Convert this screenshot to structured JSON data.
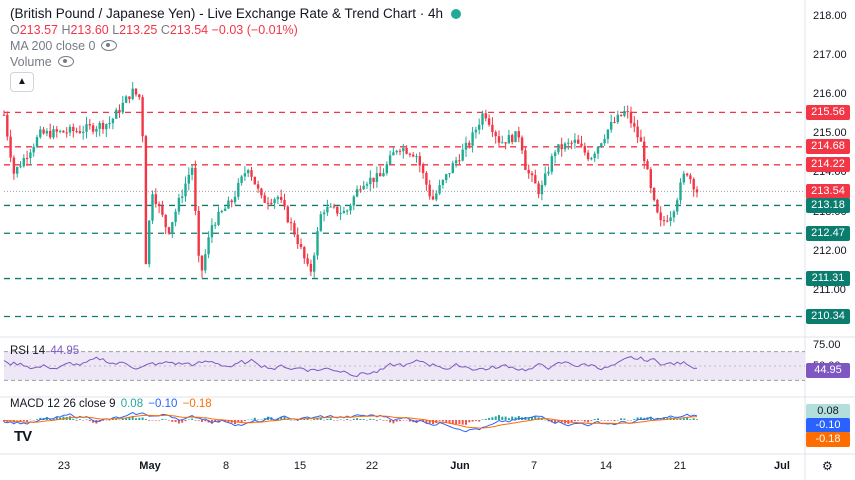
{
  "legend": {
    "title": "(British Pound / Japanese Yen) - Live Exchange Rate & Trend Chart · 4h",
    "ohlc": {
      "o_label": "O",
      "o": "213.57",
      "h_label": "H",
      "h": "213.60",
      "l_label": "L",
      "l": "213.25",
      "c_label": "C",
      "c": "213.54",
      "change": "−0.03 (−0.01%)"
    },
    "ma": "MA 200 close 0",
    "volume": "Volume",
    "collapse_icon": "chevron-up-icon"
  },
  "colors": {
    "up": "#22ab94",
    "down": "#f23645",
    "resistance": "#f23645",
    "support": "#0a7d6e",
    "rsi_line": "#7e57c2",
    "rsi_band": "#ede7f6",
    "macd_line": "#2962ff",
    "signal_line": "#ff6d00"
  },
  "price_axis": [
    "218.00",
    "217.00",
    "216.00",
    "215.00",
    "214.00",
    "213.00",
    "212.00",
    "211.00"
  ],
  "price_tags": [
    {
      "value": "215.56",
      "kind": "resistance"
    },
    {
      "value": "214.68",
      "kind": "resistance"
    },
    {
      "value": "214.22",
      "kind": "resistance"
    },
    {
      "value": "213.54",
      "kind": "current"
    },
    {
      "value": "213.18",
      "kind": "support"
    },
    {
      "value": "212.47",
      "kind": "support"
    },
    {
      "value": "211.31",
      "kind": "support"
    },
    {
      "value": "210.34",
      "kind": "support"
    }
  ],
  "rsi": {
    "label": "RSI",
    "length": "14",
    "value": "44.95",
    "axis": [
      "75.00",
      "50.00"
    ],
    "tag": "44.95"
  },
  "macd": {
    "label": "MACD",
    "params": "12 26 close 9",
    "hist": "0.08",
    "macd": "−0.10",
    "signal": "−0.18",
    "tags": [
      "0.08",
      "-0.10",
      "-0.18"
    ]
  },
  "x_axis": [
    "23",
    "May",
    "8",
    "15",
    "22",
    "Jun",
    "7",
    "14",
    "21",
    "Jul"
  ],
  "logo": "TV",
  "settings_icon": "gear-icon"
}
